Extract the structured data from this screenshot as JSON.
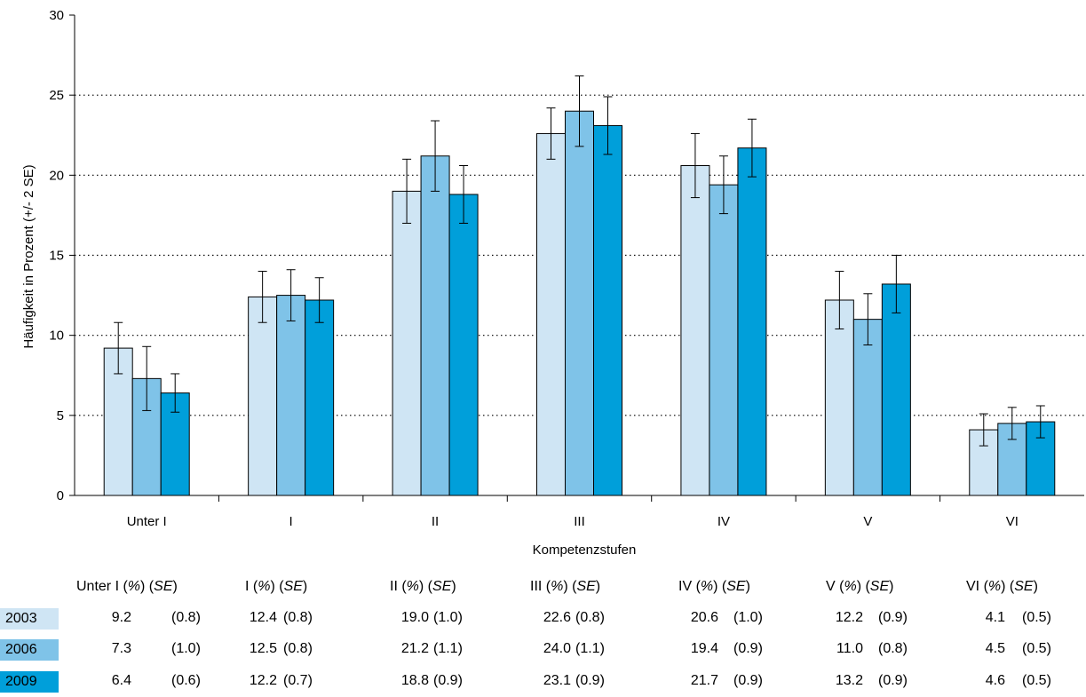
{
  "chart_data": {
    "type": "bar",
    "ylabel": "Häufigkeit in Prozent (+/- 2 SE)",
    "xlabel": "Kompetenzstufen",
    "ylim": [
      0,
      30
    ],
    "yticks": [
      0,
      5,
      10,
      15,
      20,
      25,
      30
    ],
    "grid": "horizontal dotted",
    "categories": [
      "Unter I",
      "I",
      "II",
      "III",
      "IV",
      "V",
      "VI"
    ],
    "series": [
      {
        "name": "2003",
        "color": "#cfe5f4",
        "values": [
          9.2,
          12.4,
          19.0,
          22.6,
          20.6,
          12.2,
          4.1
        ],
        "se": [
          0.8,
          0.8,
          1.0,
          0.8,
          1.0,
          0.9,
          0.5
        ]
      },
      {
        "name": "2006",
        "color": "#7fc3e8",
        "values": [
          7.3,
          12.5,
          21.2,
          24.0,
          19.4,
          11.0,
          4.5
        ],
        "se": [
          1.0,
          0.8,
          1.1,
          1.1,
          0.9,
          0.8,
          0.5
        ]
      },
      {
        "name": "2009",
        "color": "#009fda",
        "values": [
          6.4,
          12.2,
          18.8,
          23.1,
          21.7,
          13.2,
          4.6
        ],
        "se": [
          0.6,
          0.7,
          0.9,
          0.9,
          0.9,
          0.9,
          0.5
        ]
      }
    ]
  },
  "table": {
    "headers": [
      {
        "name": "Unter I",
        "pct": "(%)",
        "se": "SE"
      },
      {
        "name": "I",
        "pct": "(%)",
        "se": "SE"
      },
      {
        "name": "II",
        "pct": "(%)",
        "se": "SE"
      },
      {
        "name": "III",
        "pct": "(%)",
        "se": "SE"
      },
      {
        "name": "IV",
        "pct": "(%)",
        "se": "SE"
      },
      {
        "name": "V",
        "pct": "(%)",
        "se": "SE"
      },
      {
        "name": "VI",
        "pct": "(%)",
        "se": "SE"
      }
    ],
    "rows": [
      {
        "year": "2003",
        "color": "#cfe5f4",
        "values": [
          "9.2",
          "12.4",
          "19.0",
          "22.6",
          "20.6",
          "12.2",
          "4.1"
        ],
        "se": [
          "(0.8)",
          "(0.8)",
          "(1.0)",
          "(0.8)",
          "(1.0)",
          "(0.9)",
          "(0.5)"
        ]
      },
      {
        "year": "2006",
        "color": "#7fc3e8",
        "values": [
          "7.3",
          "12.5",
          "21.2",
          "24.0",
          "19.4",
          "11.0",
          "4.5"
        ],
        "se": [
          "(1.0)",
          "(0.8)",
          "(1.1)",
          "(1.1)",
          "(0.9)",
          "(0.8)",
          "(0.5)"
        ]
      },
      {
        "year": "2009",
        "color": "#009fda",
        "values": [
          "6.4",
          "12.2",
          "18.8",
          "23.1",
          "21.7",
          "13.2",
          "4.6"
        ],
        "se": [
          "(0.6)",
          "(0.7)",
          "(0.9)",
          "(0.9)",
          "(0.9)",
          "(0.9)",
          "(0.5)"
        ]
      }
    ]
  }
}
